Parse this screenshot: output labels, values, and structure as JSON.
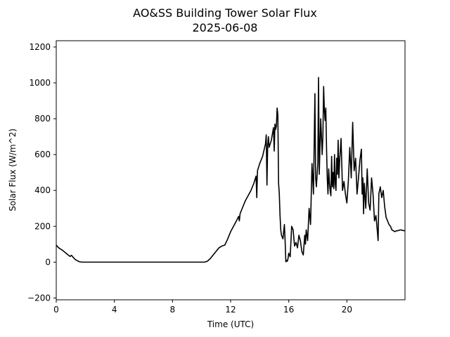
{
  "chart_data": {
    "type": "line",
    "title": "AO&SS Building Tower Solar Flux",
    "subtitle": "2025-06-08",
    "xlabel": "Time (UTC)",
    "ylabel": "Solar Flux (W/m^2)",
    "xlim": [
      0,
      24
    ],
    "ylim": [
      -210,
      1235
    ],
    "xticks": [
      0,
      4,
      8,
      12,
      16,
      20
    ],
    "yticks": [
      -200,
      0,
      200,
      400,
      600,
      800,
      1000,
      1200
    ],
    "grid": false,
    "line_color": "#000000",
    "series": [
      {
        "x": [
          0.0,
          0.1,
          0.25,
          0.4,
          0.55,
          0.7,
          0.85,
          0.95,
          1.05,
          1.15,
          1.3,
          1.45,
          1.6,
          1.8,
          2.5,
          4.0,
          6.0,
          8.0,
          9.5,
          10.2,
          10.4,
          10.6,
          10.8,
          11.0,
          11.2,
          11.4,
          11.6,
          11.8,
          12.0,
          12.2,
          12.4,
          12.55,
          12.6,
          12.65,
          12.8,
          13.0,
          13.2,
          13.4,
          13.6,
          13.75,
          13.8,
          13.85,
          14.0,
          14.2,
          14.4,
          14.45,
          14.5,
          14.55,
          14.6,
          14.65,
          14.8,
          14.95,
          15.0,
          15.05,
          15.1,
          15.15,
          15.2,
          15.25,
          15.3,
          15.35,
          15.4,
          15.45,
          15.5,
          15.6,
          15.7,
          15.75,
          15.8,
          15.85,
          15.9,
          15.95,
          16.0,
          16.1,
          16.2,
          16.3,
          16.4,
          16.5,
          16.6,
          16.7,
          16.8,
          16.9,
          17.0,
          17.1,
          17.15,
          17.2,
          17.3,
          17.4,
          17.5,
          17.6,
          17.7,
          17.8,
          17.85,
          17.9,
          18.0,
          18.05,
          18.1,
          18.2,
          18.3,
          18.35,
          18.4,
          18.45,
          18.5,
          18.55,
          18.6,
          18.65,
          18.7,
          18.75,
          18.8,
          18.85,
          18.9,
          18.95,
          19.0,
          19.05,
          19.1,
          19.15,
          19.2,
          19.25,
          19.3,
          19.35,
          19.4,
          19.45,
          19.5,
          19.6,
          19.7,
          19.8,
          19.9,
          20.0,
          20.1,
          20.2,
          20.3,
          20.4,
          20.5,
          20.6,
          20.7,
          20.8,
          20.9,
          21.0,
          21.05,
          21.1,
          21.15,
          21.2,
          21.3,
          21.4,
          21.5,
          21.6,
          21.7,
          21.8,
          21.9,
          22.0,
          22.1,
          22.15,
          22.2,
          22.3,
          22.4,
          22.5,
          22.6,
          22.7,
          22.8,
          22.9,
          23.0,
          23.1,
          23.2,
          23.3,
          23.4,
          23.5,
          23.6,
          23.7,
          23.8,
          23.9,
          23.98
        ],
        "y": [
          95,
          85,
          75,
          68,
          58,
          48,
          38,
          32,
          38,
          28,
          15,
          8,
          2,
          0,
          0,
          0,
          0,
          0,
          0,
          0,
          5,
          20,
          40,
          60,
          80,
          90,
          95,
          130,
          170,
          200,
          230,
          255,
          230,
          270,
          300,
          340,
          370,
          400,
          440,
          480,
          360,
          510,
          550,
          590,
          660,
          710,
          430,
          650,
          700,
          640,
          680,
          750,
          620,
          770,
          740,
          760,
          860,
          820,
          440,
          380,
          260,
          180,
          150,
          130,
          210,
          120,
          2,
          10,
          5,
          20,
          50,
          30,
          200,
          180,
          90,
          110,
          80,
          150,
          120,
          60,
          40,
          150,
          100,
          180,
          120,
          300,
          210,
          550,
          380,
          940,
          470,
          420,
          550,
          1030,
          490,
          800,
          600,
          700,
          980,
          850,
          790,
          860,
          640,
          470,
          380,
          520,
          440,
          400,
          370,
          590,
          420,
          500,
          410,
          600,
          440,
          400,
          580,
          490,
          680,
          470,
          560,
          690,
          400,
          450,
          380,
          330,
          450,
          640,
          470,
          780,
          510,
          580,
          380,
          470,
          570,
          630,
          380,
          470,
          270,
          440,
          300,
          520,
          330,
          290,
          470,
          380,
          230,
          260,
          170,
          120,
          380,
          420,
          360,
          400,
          310,
          250,
          230,
          210,
          200,
          180,
          175,
          170,
          175,
          175,
          178,
          180,
          178,
          176,
          175
        ]
      }
    ]
  }
}
